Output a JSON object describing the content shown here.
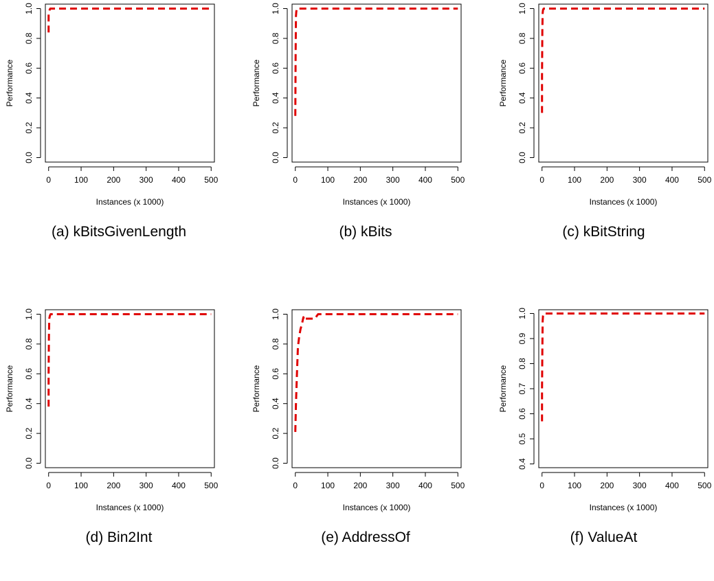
{
  "chart_data": [
    {
      "type": "line",
      "caption": "(a) kBitsGivenLength",
      "xlabel": "Instances (x 1000)",
      "ylabel": "Performance",
      "xlim": [
        -10,
        510
      ],
      "ylim": [
        -0.03,
        1.03
      ],
      "xticks": [
        0,
        100,
        200,
        300,
        400,
        500
      ],
      "xtick_labels": [
        "0",
        "100",
        "200",
        "300",
        "400",
        "500"
      ],
      "yticks": [
        0.0,
        0.2,
        0.4,
        0.6,
        0.8,
        1.0
      ],
      "ytick_labels": [
        "0.0",
        "0.2",
        "0.4",
        "0.6",
        "0.8",
        "1.0"
      ],
      "line_color": "#e00000",
      "line_style": "dashed",
      "grid": false,
      "x": [
        0,
        0,
        3,
        5,
        10,
        50,
        100,
        200,
        300,
        400,
        500
      ],
      "y": [
        0.84,
        0.96,
        0.99,
        1.0,
        1.0,
        1.0,
        1.0,
        1.0,
        1.0,
        1.0,
        1.0
      ]
    },
    {
      "type": "line",
      "caption": "(b) kBits",
      "xlabel": "Instances (x 1000)",
      "ylabel": "Performance",
      "xlim": [
        -10,
        510
      ],
      "ylim": [
        -0.03,
        1.03
      ],
      "xticks": [
        0,
        100,
        200,
        300,
        400,
        500
      ],
      "xtick_labels": [
        "0",
        "100",
        "200",
        "300",
        "400",
        "500"
      ],
      "yticks": [
        0.0,
        0.2,
        0.4,
        0.6,
        0.8,
        1.0
      ],
      "ytick_labels": [
        "0.0",
        "0.2",
        "0.4",
        "0.6",
        "0.8",
        "1.0"
      ],
      "line_color": "#e00000",
      "line_style": "dashed",
      "grid": false,
      "x": [
        0,
        1,
        2,
        3,
        5,
        10,
        50,
        100,
        200,
        300,
        400,
        500
      ],
      "y": [
        0.28,
        0.7,
        0.95,
        0.98,
        1.0,
        1.0,
        1.0,
        1.0,
        1.0,
        1.0,
        1.0,
        1.0
      ]
    },
    {
      "type": "line",
      "caption": "(c) kBitString",
      "xlabel": "Instances (x 1000)",
      "ylabel": "Performance",
      "xlim": [
        -10,
        510
      ],
      "ylim": [
        -0.03,
        1.03
      ],
      "xticks": [
        0,
        100,
        200,
        300,
        400,
        500
      ],
      "xtick_labels": [
        "0",
        "100",
        "200",
        "300",
        "400",
        "500"
      ],
      "yticks": [
        0.0,
        0.2,
        0.4,
        0.6,
        0.8,
        1.0
      ],
      "ytick_labels": [
        "0.0",
        "0.2",
        "0.4",
        "0.6",
        "0.8",
        "1.0"
      ],
      "line_color": "#e00000",
      "line_style": "dashed",
      "grid": false,
      "x": [
        0,
        0,
        1,
        2,
        3,
        5,
        10,
        50,
        100,
        200,
        300,
        400,
        500
      ],
      "y": [
        0.3,
        0.55,
        0.85,
        0.97,
        0.99,
        1.0,
        1.0,
        1.0,
        1.0,
        1.0,
        1.0,
        1.0,
        1.0
      ]
    },
    {
      "type": "line",
      "caption": "(d) Bin2Int",
      "xlabel": "Instances (x 1000)",
      "ylabel": "Performance",
      "xlim": [
        -10,
        510
      ],
      "ylim": [
        -0.03,
        1.03
      ],
      "xticks": [
        0,
        100,
        200,
        300,
        400,
        500
      ],
      "xtick_labels": [
        "0",
        "100",
        "200",
        "300",
        "400",
        "500"
      ],
      "yticks": [
        0.0,
        0.2,
        0.4,
        0.6,
        0.8,
        1.0
      ],
      "ytick_labels": [
        "0.0",
        "0.2",
        "0.4",
        "0.6",
        "0.8",
        "1.0"
      ],
      "line_color": "#e00000",
      "line_style": "dashed",
      "grid": false,
      "x": [
        0,
        0,
        1,
        2,
        4,
        6,
        10,
        50,
        100,
        200,
        300,
        400,
        500
      ],
      "y": [
        0.38,
        0.6,
        0.85,
        0.97,
        0.99,
        1.0,
        1.0,
        1.0,
        1.0,
        1.0,
        1.0,
        1.0,
        1.0
      ]
    },
    {
      "type": "line",
      "caption": "(e) AddressOf",
      "xlabel": "Instances (x 1000)",
      "ylabel": "Performance",
      "xlim": [
        -10,
        510
      ],
      "ylim": [
        -0.03,
        1.03
      ],
      "xticks": [
        0,
        100,
        200,
        300,
        400,
        500
      ],
      "xtick_labels": [
        "0",
        "100",
        "200",
        "300",
        "400",
        "500"
      ],
      "yticks": [
        0.0,
        0.2,
        0.4,
        0.6,
        0.8,
        1.0
      ],
      "ytick_labels": [
        "0.0",
        "0.2",
        "0.4",
        "0.6",
        "0.8",
        "1.0"
      ],
      "line_color": "#e00000",
      "line_style": "dashed",
      "grid": false,
      "x": [
        0,
        2,
        5,
        8,
        12,
        16,
        20,
        25,
        28,
        30,
        40,
        50,
        60,
        70,
        100,
        200,
        300,
        400,
        500
      ],
      "y": [
        0.21,
        0.4,
        0.6,
        0.78,
        0.85,
        0.9,
        0.93,
        0.98,
        0.96,
        0.97,
        0.97,
        0.97,
        0.97,
        1.0,
        1.0,
        1.0,
        1.0,
        1.0,
        1.0
      ]
    },
    {
      "type": "line",
      "caption": "(f) ValueAt",
      "xlabel": "Instances (x 1000)",
      "ylabel": "Performance",
      "xlim": [
        -10,
        510
      ],
      "ylim": [
        0.385,
        1.015
      ],
      "xticks": [
        0,
        100,
        200,
        300,
        400,
        500
      ],
      "xtick_labels": [
        "0",
        "100",
        "200",
        "300",
        "400",
        "500"
      ],
      "yticks": [
        0.4,
        0.5,
        0.6,
        0.7,
        0.8,
        0.9,
        1.0
      ],
      "ytick_labels": [
        "0.4",
        "0.5",
        "0.6",
        "0.7",
        "0.8",
        "0.9",
        "1.0"
      ],
      "line_color": "#e00000",
      "line_style": "dashed",
      "grid": false,
      "x": [
        0,
        0,
        1,
        2,
        3,
        5,
        10,
        50,
        100,
        200,
        300,
        400,
        500
      ],
      "y": [
        0.57,
        0.7,
        0.85,
        0.97,
        0.99,
        1.0,
        1.0,
        1.0,
        1.0,
        1.0,
        1.0,
        1.0,
        1.0
      ]
    }
  ]
}
